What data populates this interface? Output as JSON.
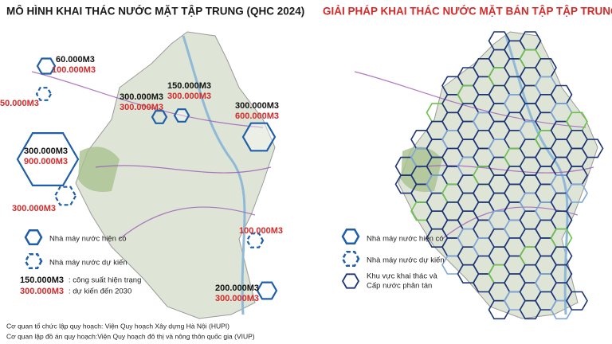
{
  "left": {
    "title": "MÔ HÌNH KHAI THÁC NƯỚC MẶT TẬP TRUNG (QHC 2024)",
    "capacity_labels": [
      {
        "current": "60.000M3",
        "planned": "100.000M3"
      },
      {
        "planned": "50.000M3"
      },
      {
        "current": "150.000M3",
        "planned": "300.000M3"
      },
      {
        "current": "300.000M3",
        "planned": "300.000M3"
      },
      {
        "current": "300.000M3",
        "planned": "600.000M3"
      },
      {
        "current": "300.000M3",
        "planned": "900.000M3"
      },
      {
        "planned": "300.000M3"
      },
      {
        "planned": "100.000M3"
      },
      {
        "current": "200.000M3",
        "planned": "300.000M3"
      }
    ],
    "legend": {
      "existing": "Nhà máy nước hiện có",
      "planned": "Nhà máy nước dự kiến",
      "current_capacity": "150.000M3",
      "current_capacity_text": ": công suất hiện trạng",
      "planned_capacity": "300.000M3",
      "planned_capacity_text": ": dự kiến đến 2030"
    },
    "credits": [
      "Cơ quan tổ chức lập quy hoạch: Viện Quy hoạch Xây dựng Hà Nội (HUPI)",
      "Cơ quan lập đồ án quy hoạch:Viện Quy hoạch đô thị và nông thôn quốc gia (VIUP)"
    ]
  },
  "right": {
    "title": "GIẢI PHÁP KHAI THÁC NƯỚC MẶT BÁN TẬP TẬP TRUNG",
    "legend": {
      "existing": "Nhà máy nước hiện có",
      "planned": "Nhà máy nước dự kiến",
      "distributed": [
        "Khu vực khai thác và",
        "Cấp nước phân tán"
      ]
    }
  }
}
